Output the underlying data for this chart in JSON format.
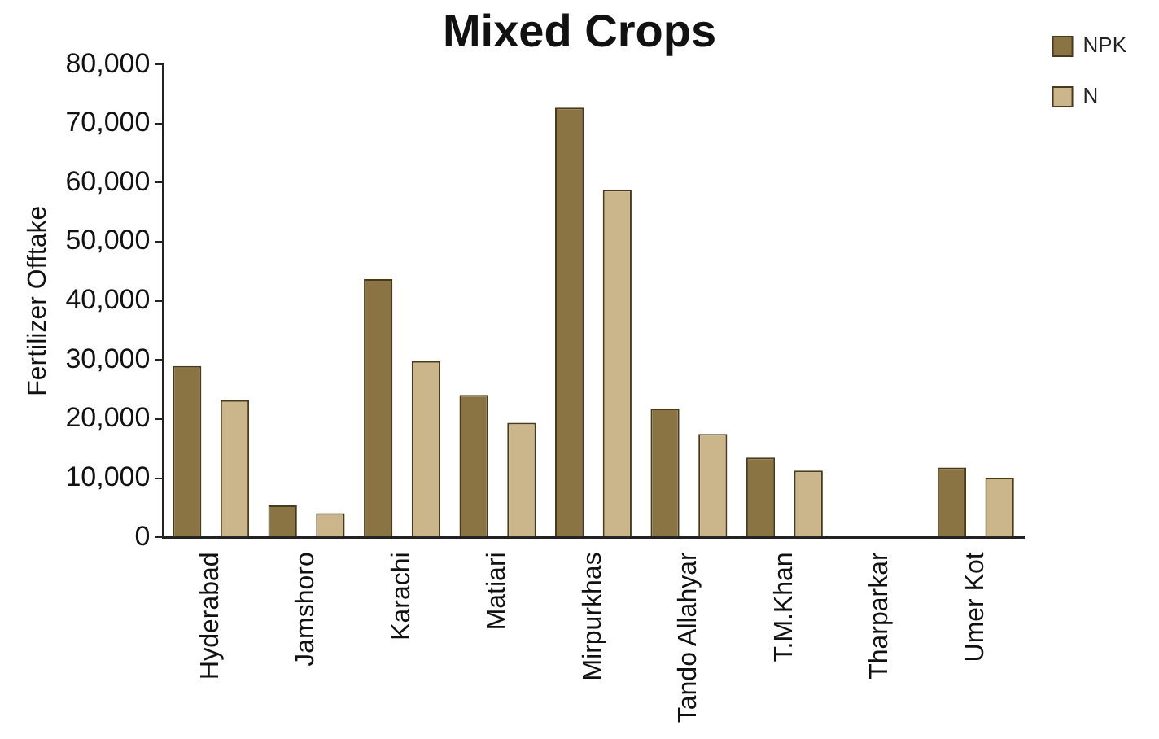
{
  "chart_data": {
    "type": "bar",
    "title": "Mixed Crops",
    "ylabel": "Fertilizer Offtake",
    "categories": [
      "Hyderabad",
      "Jamshoro",
      "Karachi",
      "Matiari",
      "Mirpurkhas",
      "Tando Allahyar",
      "T.M.Khan",
      "Tharparkar",
      "Umer Kot"
    ],
    "series": [
      {
        "name": "NPK",
        "color": "#8b7443",
        "values": [
          29000,
          5400,
          43700,
          24100,
          72700,
          21800,
          13500,
          0,
          11800
        ]
      },
      {
        "name": "N",
        "color": "#cbb68c",
        "values": [
          23200,
          4100,
          29800,
          19400,
          58800,
          17500,
          11300,
          0,
          10100
        ]
      }
    ],
    "ylim": [
      0,
      80000
    ],
    "yticks": [
      0,
      {
        "value": 10000,
        "label": "10,000"
      },
      {
        "value": 20000,
        "label": "20,000"
      },
      {
        "value": 30000,
        "label": "30,000"
      },
      {
        "value": 40000,
        "label": "40,000"
      },
      {
        "value": 50000,
        "label": "50,000"
      },
      {
        "value": 60000,
        "label": "60,000"
      },
      {
        "value": 70000,
        "label": "70,000"
      },
      {
        "value": 80000,
        "label": "80,000"
      }
    ],
    "grid": false,
    "legend": "top right"
  }
}
